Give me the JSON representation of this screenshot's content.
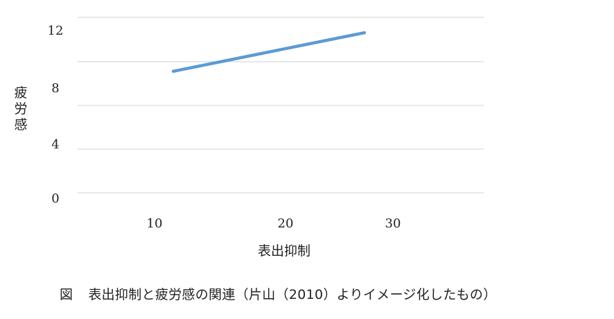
{
  "caption": {
    "figure_label": "図",
    "text": "表出抑制と疲労感の関連（片山（2010）よりイメージ化したもの）"
  },
  "colors": {
    "line": "#5b9bd5",
    "grid": "#d9d9d9"
  },
  "chart_data": {
    "type": "line",
    "title": "",
    "xlabel": "表出抑制",
    "ylabel": "疲労感",
    "x_ticks": [
      10,
      20,
      30
    ],
    "y_ticks": [
      0,
      4,
      8,
      12
    ],
    "grid": true,
    "series": [
      {
        "x": [
          10,
          28.5
        ],
        "y": [
          7.1,
          10.6
        ]
      }
    ]
  }
}
